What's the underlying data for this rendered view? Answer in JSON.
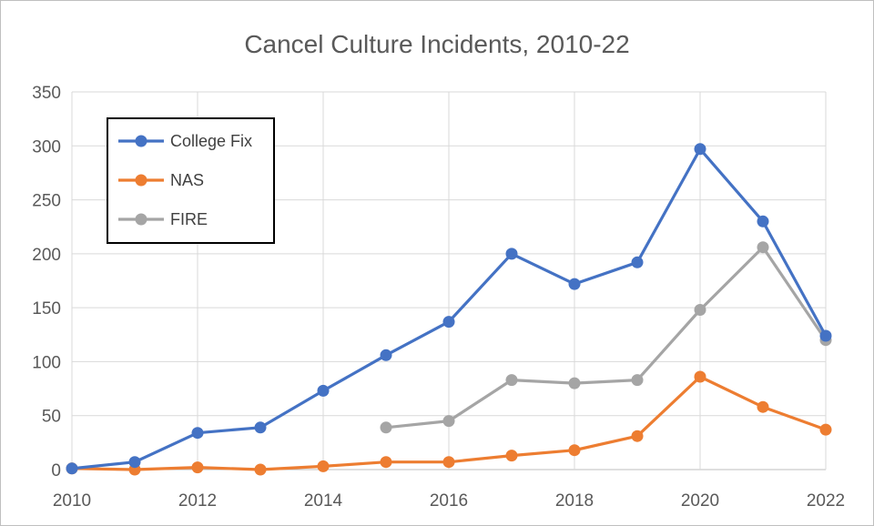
{
  "chart_data": {
    "type": "line",
    "title": "Cancel Culture Incidents, 2010-22",
    "xlabel": "",
    "ylabel": "",
    "x": [
      2010,
      2011,
      2012,
      2013,
      2014,
      2015,
      2016,
      2017,
      2018,
      2019,
      2020,
      2021,
      2022
    ],
    "x_tick_labels": [
      "2010",
      "2012",
      "2014",
      "2016",
      "2018",
      "2020",
      "2022"
    ],
    "y_tick_labels": [
      "0",
      "50",
      "100",
      "150",
      "200",
      "250",
      "300",
      "350"
    ],
    "xlim": [
      2010,
      2022
    ],
    "ylim": [
      0,
      350
    ],
    "grid": true,
    "legend_position": "top-left",
    "series": [
      {
        "name": "College Fix",
        "color": "#4472C4",
        "values": [
          1,
          7,
          34,
          39,
          73,
          106,
          137,
          200,
          172,
          192,
          297,
          230,
          124
        ]
      },
      {
        "name": "NAS",
        "color": "#ED7D31",
        "values": [
          1,
          0,
          2,
          0,
          3,
          7,
          7,
          13,
          18,
          31,
          86,
          58,
          37
        ]
      },
      {
        "name": "FIRE",
        "color": "#A5A5A5",
        "values": [
          null,
          null,
          null,
          null,
          null,
          39,
          45,
          83,
          80,
          83,
          148,
          206,
          120
        ]
      }
    ]
  }
}
